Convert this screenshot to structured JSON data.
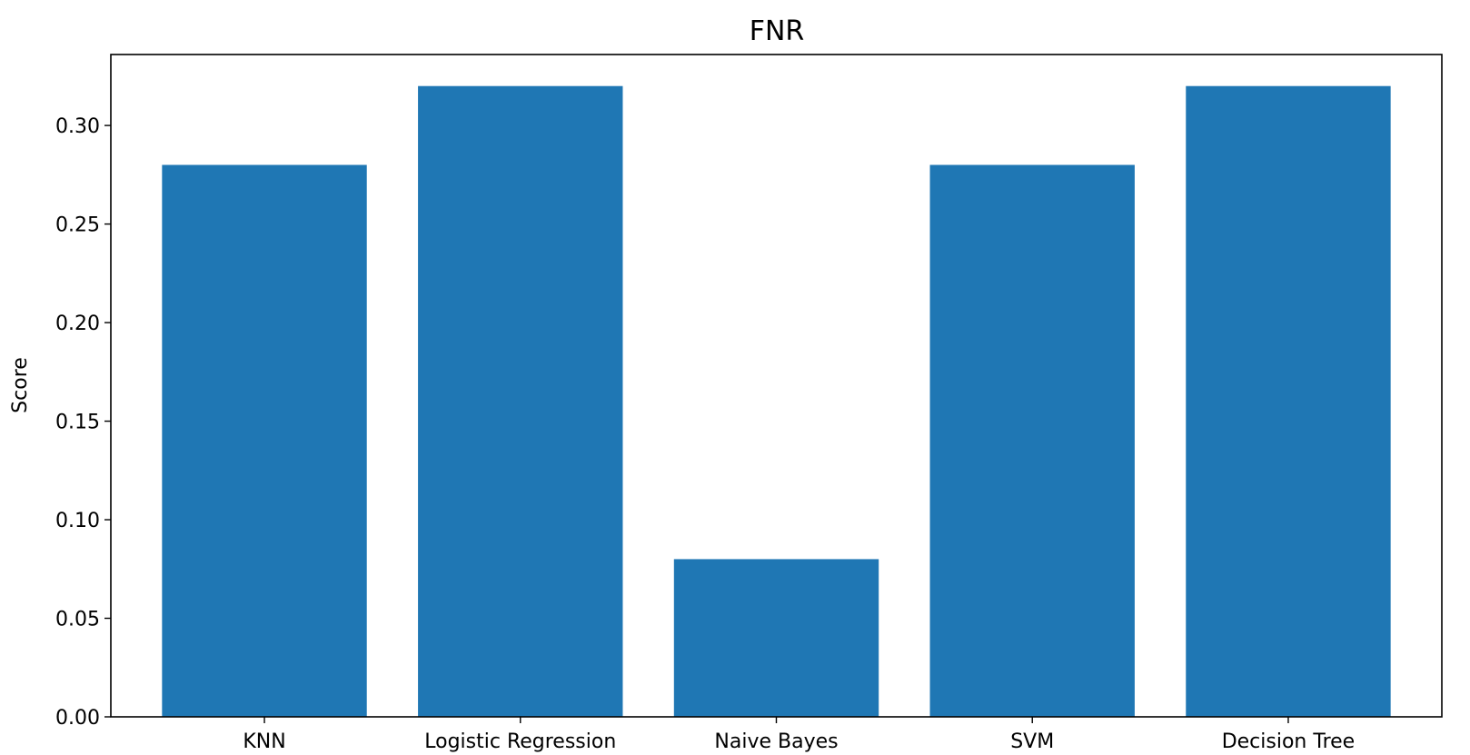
{
  "chart_data": {
    "type": "bar",
    "title": "FNR",
    "xlabel": "",
    "ylabel": "Score",
    "categories": [
      "KNN",
      "Logistic Regression",
      "Naive Bayes",
      "SVM",
      "Decision Tree"
    ],
    "values": [
      0.28,
      0.32,
      0.08,
      0.28,
      0.32
    ],
    "ylim": [
      0,
      0.336
    ],
    "yticks": [
      0.0,
      0.05,
      0.1,
      0.15,
      0.2,
      0.25,
      0.3
    ],
    "ytick_labels": [
      "0.00",
      "0.05",
      "0.10",
      "0.15",
      "0.20",
      "0.25",
      "0.30"
    ],
    "bar_color": "#1f77b4",
    "grid": false,
    "legend": "none"
  }
}
